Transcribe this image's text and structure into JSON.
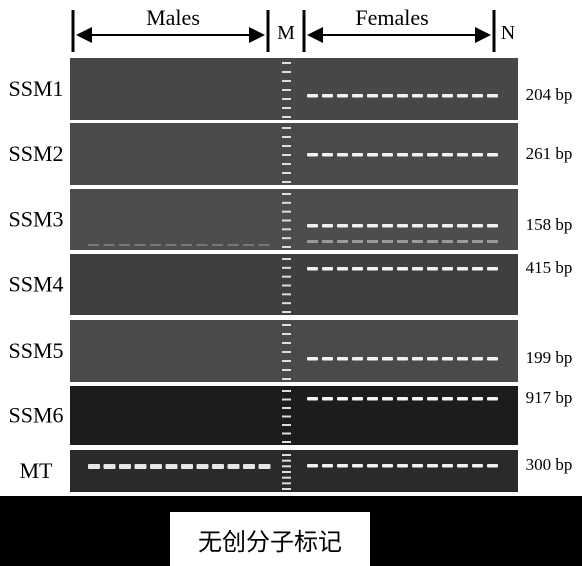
{
  "header": {
    "males": "Males",
    "marker": "M",
    "females": "Females",
    "negative": "N"
  },
  "rows": [
    {
      "label": "SSM1",
      "size": "204 bp"
    },
    {
      "label": "SSM2",
      "size": "261 bp"
    },
    {
      "label": "SSM3",
      "size": "158 bp"
    },
    {
      "label": "SSM4",
      "size": "415 bp"
    },
    {
      "label": "SSM5",
      "size": "199 bp"
    },
    {
      "label": "SSM6",
      "size": "917 bp"
    },
    {
      "label": "MT",
      "size": "300 bp"
    }
  ],
  "caption": "无创分子标记"
}
